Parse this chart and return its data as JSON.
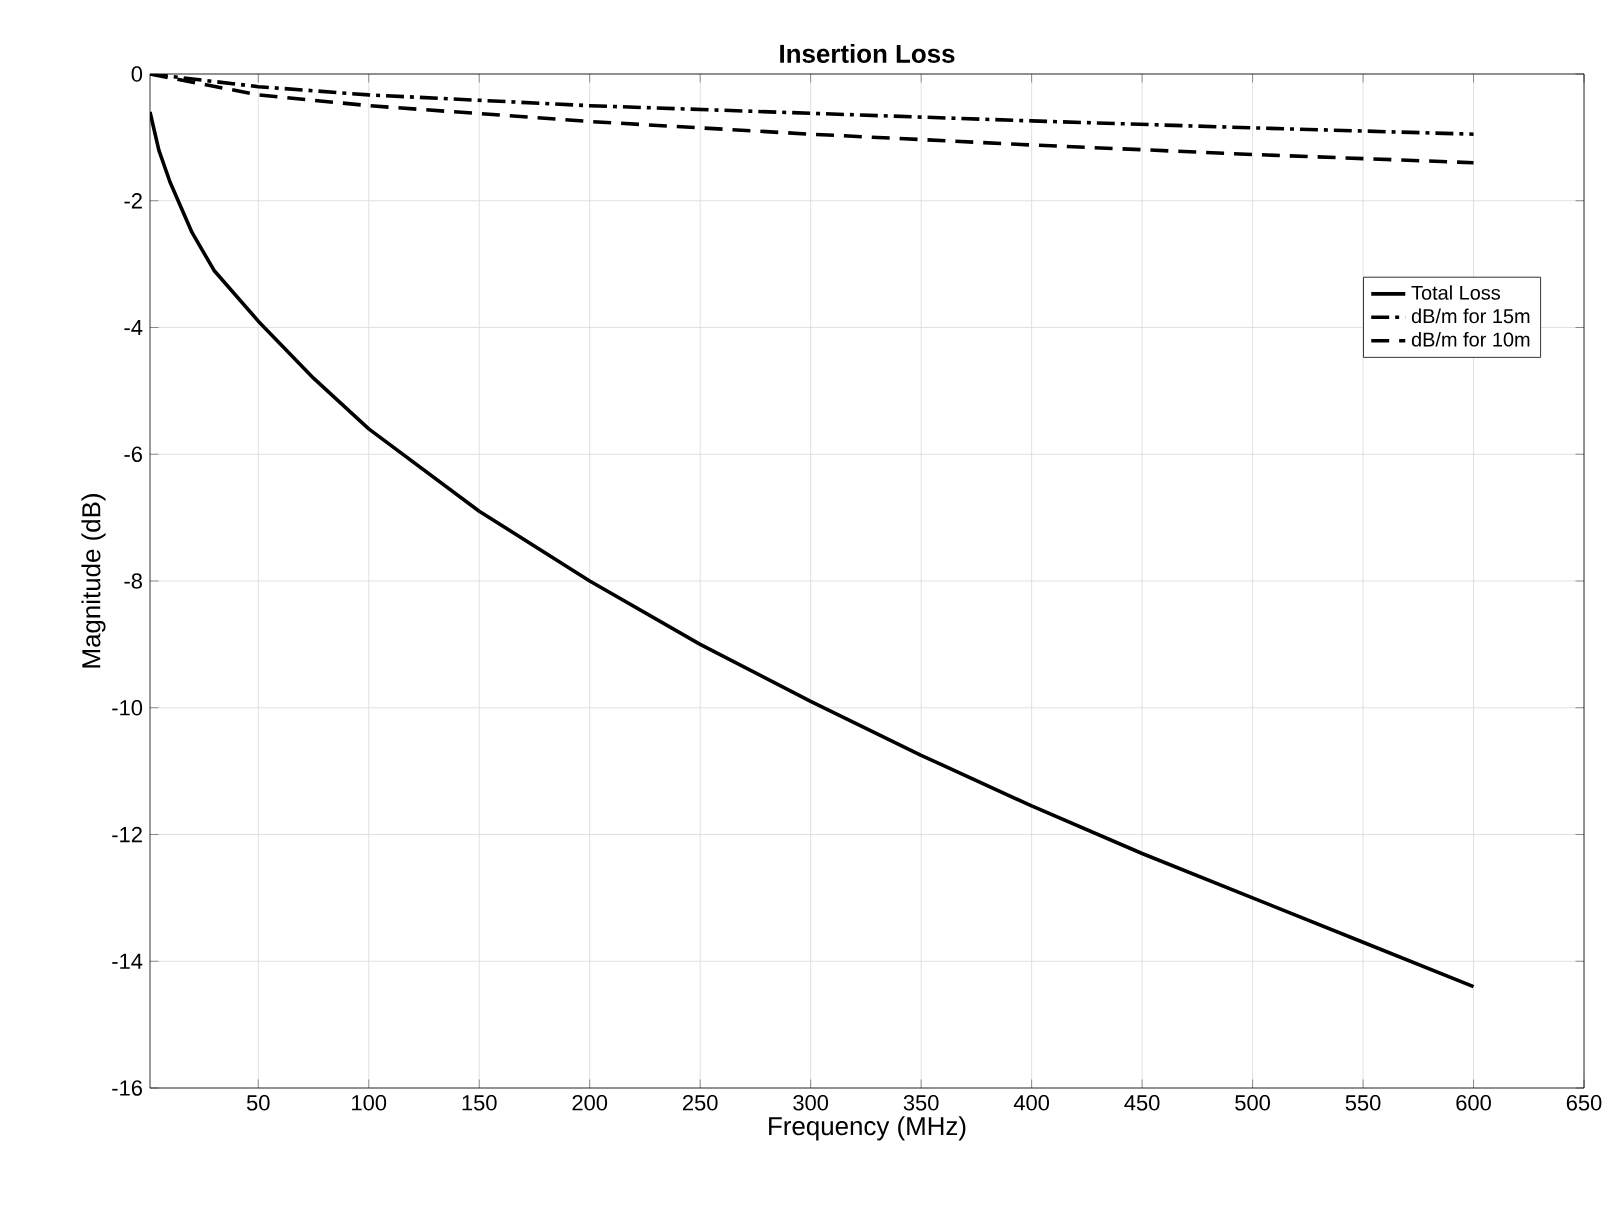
{
  "chart_data": {
    "type": "line",
    "title": "Insertion Loss",
    "xlabel": "Frequency (MHz)",
    "ylabel": "Magnitude (dB)",
    "xlim": [
      1,
      650
    ],
    "ylim": [
      -16,
      0
    ],
    "xticks": [
      50,
      100,
      150,
      200,
      250,
      300,
      350,
      400,
      450,
      500,
      550,
      600,
      650
    ],
    "yticks": [
      -16,
      -14,
      -12,
      -10,
      -8,
      -6,
      -4,
      -2,
      0
    ],
    "grid": true,
    "legend": "top right",
    "series": [
      {
        "name": "Total Loss",
        "color": "#000000",
        "line_style": "solid",
        "x": [
          1,
          5,
          10,
          20,
          30,
          50,
          75,
          100,
          150,
          200,
          250,
          300,
          350,
          400,
          450,
          500,
          550,
          600
        ],
        "values": [
          -0.6,
          -1.2,
          -1.7,
          -2.5,
          -3.1,
          -3.9,
          -4.8,
          -5.6,
          -6.9,
          -8.0,
          -9.0,
          -9.9,
          -10.75,
          -11.55,
          -12.3,
          -13.0,
          -13.7,
          -14.4
        ]
      },
      {
        "name": "dB/m for 15m",
        "color": "#000000",
        "line_style": "dashdot",
        "x": [
          1,
          50,
          100,
          200,
          300,
          400,
          500,
          600
        ],
        "values": [
          0,
          -0.2,
          -0.33,
          -0.5,
          -0.62,
          -0.74,
          -0.85,
          -0.95
        ]
      },
      {
        "name": "dB/m for 10m",
        "color": "#000000",
        "line_style": "dashed",
        "x": [
          1,
          50,
          100,
          200,
          300,
          400,
          500,
          600
        ],
        "values": [
          0,
          -0.33,
          -0.5,
          -0.75,
          -0.95,
          -1.12,
          -1.27,
          -1.4
        ]
      }
    ]
  }
}
